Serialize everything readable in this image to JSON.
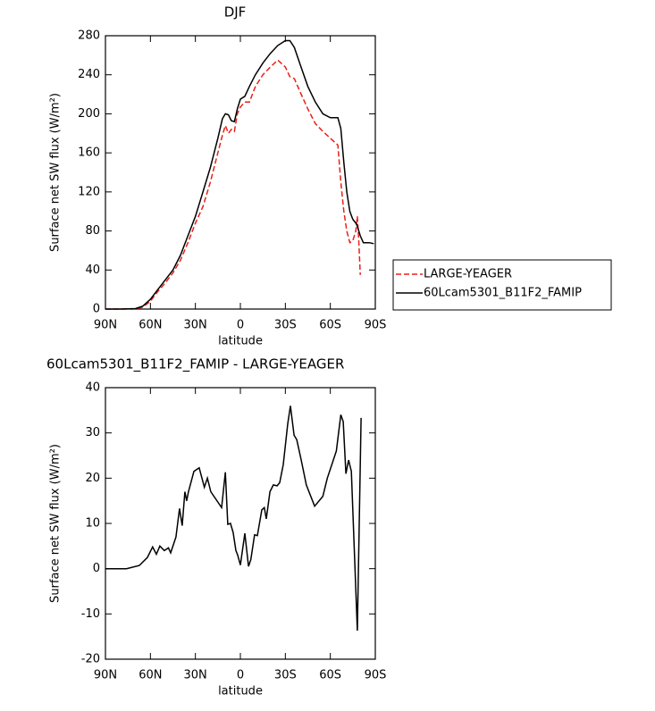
{
  "chart_data": [
    {
      "type": "line",
      "title": "DJF",
      "x_label": "latitude",
      "y_label": "Surface net SW flux (W/m²)",
      "x": [
        90,
        80,
        70,
        65,
        60,
        55,
        50,
        45,
        40,
        35,
        30,
        25,
        20,
        15,
        12,
        10,
        8,
        6,
        4,
        2,
        0,
        -3,
        -6,
        -10,
        -15,
        -20,
        -25,
        -30,
        -33,
        -36,
        -40,
        -45,
        -50,
        -55,
        -60,
        -65,
        -67,
        -69,
        -71,
        -73,
        -75,
        -77,
        -78,
        -79,
        -80,
        -82,
        -86,
        -89
      ],
      "series": [
        {
          "name": "LARGE-YEAGER",
          "color": "#e8201a",
          "dashed": true,
          "values": [
            0,
            0,
            0,
            2,
            8,
            18,
            27,
            37,
            50,
            68,
            88,
            105,
            130,
            160,
            178,
            188,
            180,
            184,
            182,
            200,
            207,
            212,
            212,
            228,
            240,
            248,
            255,
            248,
            238,
            236,
            222,
            205,
            190,
            182,
            175,
            168,
            130,
            100,
            80,
            68,
            70,
            80,
            95,
            70,
            35,
            null,
            null,
            null
          ]
        },
        {
          "name": "60Lcam5301_B11F2_FAMIP",
          "color": "#000000",
          "dashed": false,
          "values": [
            0,
            0,
            0.5,
            3,
            10,
            20,
            30,
            40,
            55,
            75,
            95,
            120,
            145,
            175,
            195,
            200,
            199,
            193,
            192,
            205,
            215,
            218,
            228,
            240,
            252,
            262,
            270,
            275,
            275,
            268,
            250,
            228,
            212,
            200,
            196,
            196,
            185,
            150,
            120,
            100,
            92,
            88,
            85,
            80,
            75,
            68,
            68,
            67
          ]
        }
      ],
      "xlim": [
        90,
        -90
      ],
      "xticks": [
        {
          "value": 90,
          "label": "90N"
        },
        {
          "value": 60,
          "label": "60N"
        },
        {
          "value": 30,
          "label": "30N"
        },
        0,
        {
          "value": -30,
          "label": "30S"
        },
        {
          "value": -60,
          "label": "60S"
        },
        {
          "value": -90,
          "label": "90S"
        }
      ],
      "ylim": [
        0,
        280
      ],
      "yticks": [
        0,
        40,
        80,
        120,
        160,
        200,
        240,
        280
      ],
      "legend": "right"
    },
    {
      "type": "line",
      "title": "60Lcam5301_B11F2_FAMIP - LARGE-YEAGER",
      "x_label": "latitude",
      "y_label": "Surface net SW flux (W/m²)",
      "x": [
        90,
        76,
        67.4,
        62,
        58.5,
        56,
        53.7,
        50.7,
        48,
        46.5,
        43,
        40.6,
        38.8,
        37,
        35.8,
        34.6,
        31,
        27.5,
        24,
        22,
        19.7,
        12.5,
        10,
        8.4,
        6.6,
        4.8,
        3,
        1.8,
        0,
        -3,
        -5.4,
        -7,
        -9.5,
        -11.3,
        -14.3,
        -16,
        -17.3,
        -19.7,
        -22,
        -24.5,
        -26.2,
        -28.6,
        -31.6,
        -33.4,
        -35.8,
        -37.6,
        -40.6,
        -44,
        -49.5,
        -55,
        -58,
        -64,
        -67,
        -68.6,
        -70.4,
        -72.2,
        -74,
        -78,
        -80.5
      ],
      "series": [
        {
          "name": "60Lcam5301_B11F2_FAMIP - LARGE-YEAGER",
          "color": "#000000",
          "dashed": false,
          "values": [
            0,
            0,
            0.7,
            2.5,
            4.8,
            3.2,
            5,
            4,
            4.6,
            3.5,
            7,
            13.3,
            9.5,
            17,
            15,
            17,
            21.5,
            22.3,
            18,
            20,
            17,
            13.5,
            21.3,
            9.8,
            10,
            8,
            4,
            3,
            0.8,
            7.8,
            0.5,
            2,
            7.5,
            7.3,
            13,
            13.5,
            11,
            17,
            18.5,
            18.3,
            19,
            23,
            32,
            36,
            29.5,
            28.5,
            24,
            18.5,
            13.8,
            16,
            20,
            26,
            34,
            32.5,
            21,
            24,
            21.5,
            -13.7,
            33.3
          ]
        }
      ],
      "xlim": [
        90,
        -90
      ],
      "xticks": [
        {
          "value": 90,
          "label": "90N"
        },
        {
          "value": 60,
          "label": "60N"
        },
        {
          "value": 30,
          "label": "30N"
        },
        0,
        {
          "value": -30,
          "label": "30S"
        },
        {
          "value": -60,
          "label": "60S"
        },
        {
          "value": -90,
          "label": "90S"
        }
      ],
      "ylim": [
        -20,
        40
      ],
      "yticks": [
        -20,
        -10,
        0,
        10,
        20,
        30,
        40
      ]
    }
  ]
}
